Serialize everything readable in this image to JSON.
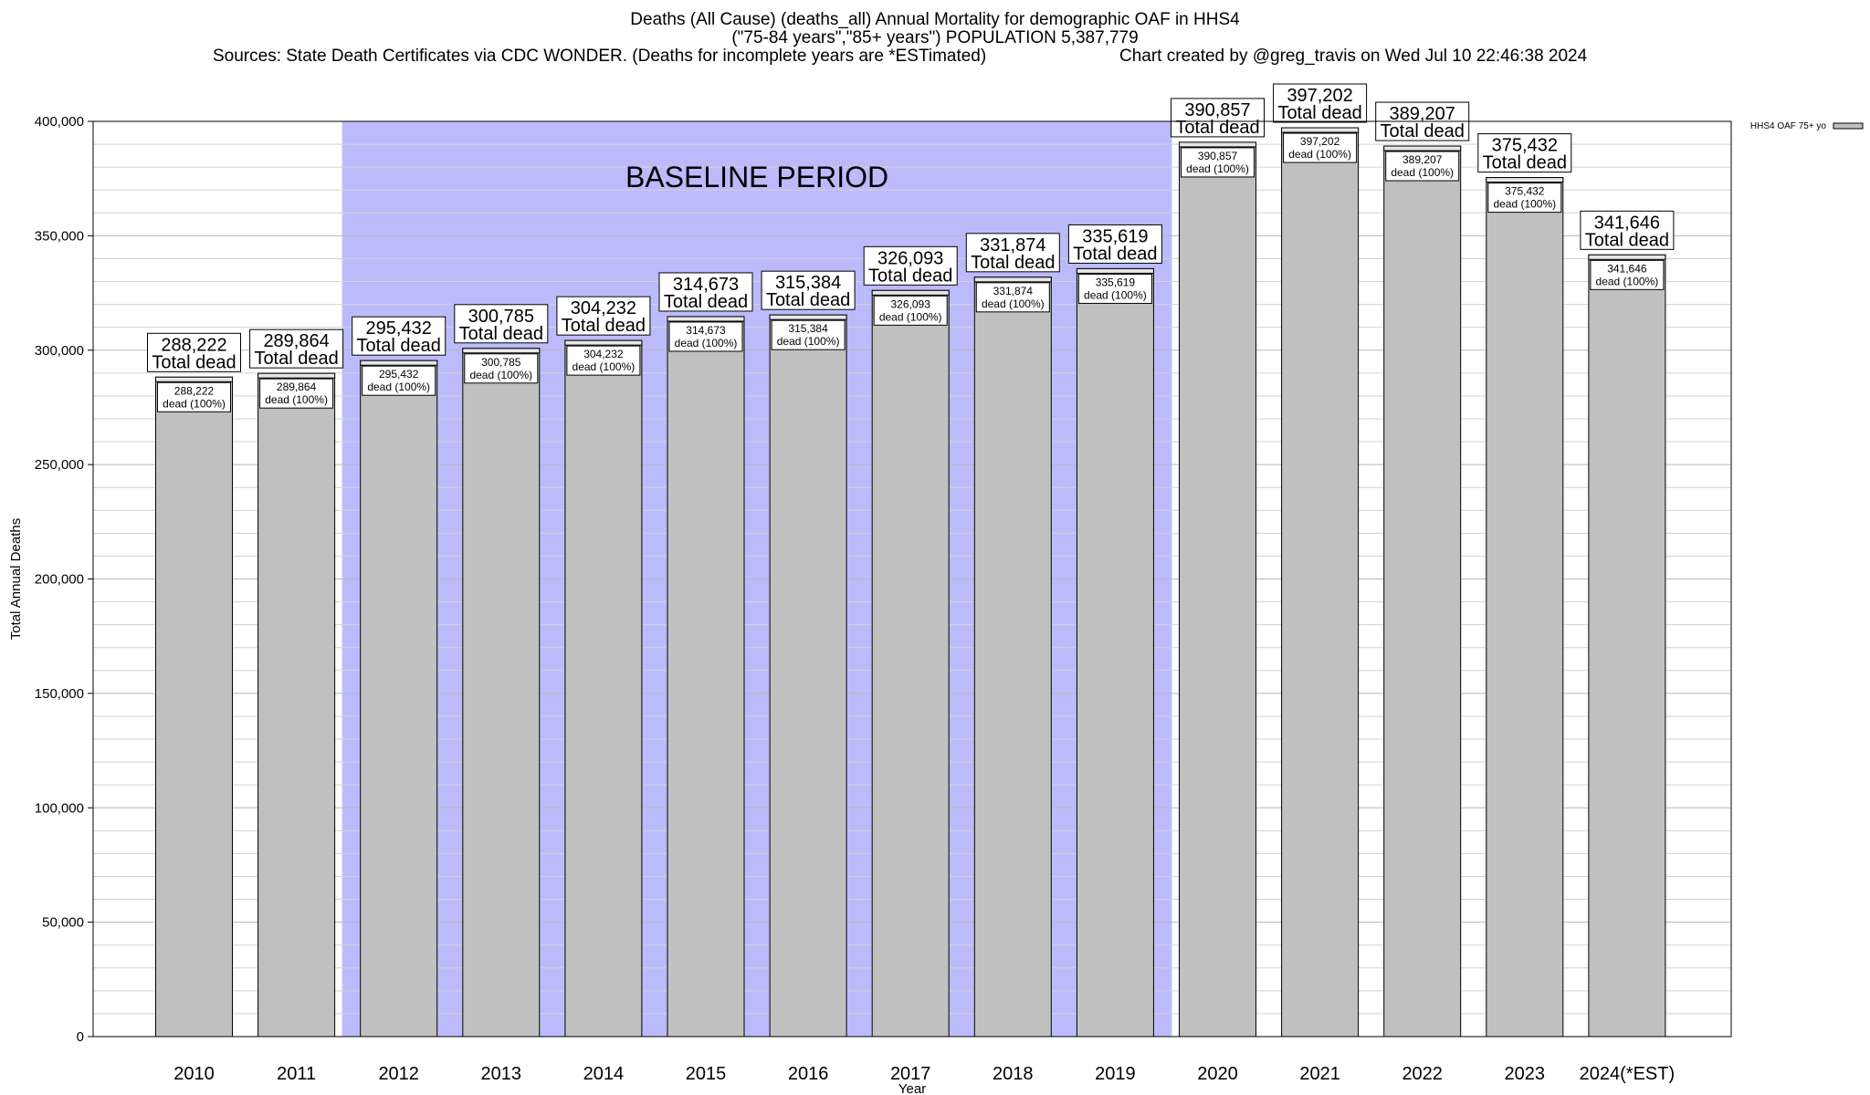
{
  "header": {
    "title_line1": "Deaths (All Cause) (deaths_all) Annual Mortality for demographic OAF in HHS4",
    "title_line2": "(\"75-84 years\",\"85+ years\") POPULATION 5,387,779",
    "sources": "Sources: State Death Certificates via CDC WONDER. (Deaths for incomplete years are *ESTimated)",
    "created": "Chart created by @greg_travis on Wed Jul 10 22:46:38 2024"
  },
  "chart_data": {
    "type": "bar",
    "title": "Deaths (All Cause) (deaths_all) Annual Mortality for demographic OAF in HHS4",
    "xlabel": "Year",
    "ylabel": "Total Annual Deaths",
    "ylim": [
      0,
      400000
    ],
    "yticks": [
      0,
      50000,
      100000,
      150000,
      200000,
      250000,
      300000,
      350000,
      400000
    ],
    "ytick_labels": [
      "0",
      "50,000",
      "100,000",
      "150,000",
      "200,000",
      "250,000",
      "300,000",
      "350,000",
      "400,000"
    ],
    "minor_grid_step": 10000,
    "grid": true,
    "categories": [
      "2010",
      "2011",
      "2012",
      "2013",
      "2014",
      "2015",
      "2016",
      "2017",
      "2018",
      "2019",
      "2020",
      "2021",
      "2022",
      "2023",
      "2024(*EST)"
    ],
    "series": [
      {
        "name": "HHS4 OAF 75+ yo",
        "color": "#c0c0c0",
        "values": [
          288222,
          289864,
          295432,
          300785,
          304232,
          314673,
          315384,
          326093,
          331874,
          335619,
          390857,
          397202,
          389207,
          375432,
          341646
        ],
        "value_labels": [
          "288,222",
          "289,864",
          "295,432",
          "300,785",
          "304,232",
          "314,673",
          "315,384",
          "326,093",
          "331,874",
          "335,619",
          "390,857",
          "397,202",
          "389,207",
          "375,432",
          "341,646"
        ]
      }
    ],
    "total_label_suffix": "Total dead",
    "inner_label_suffix": "dead (100%)",
    "baseline": {
      "label": "BASELINE PERIOD",
      "from_category": "2012",
      "to_category": "2019",
      "color": "#bbbbfb"
    },
    "legend": {
      "placement": "top-right-outside",
      "label": "HHS4 OAF 75+ yo"
    }
  }
}
